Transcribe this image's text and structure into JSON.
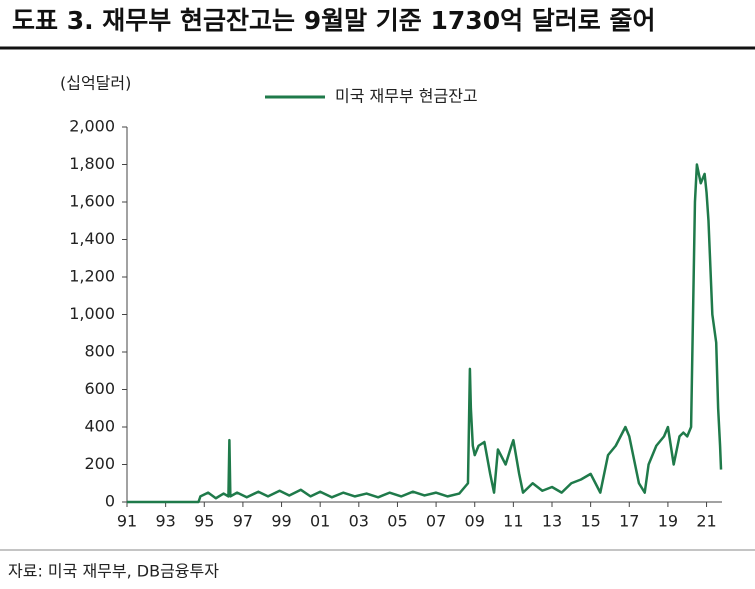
{
  "chart_data": {
    "type": "line",
    "title": "도표 3. 재무부 현금잔고는 9월말 기준 1730억 달러로 줄어",
    "y_label": "(십억달러)",
    "source": "자료: 미국 재무부, DB금융투자",
    "xlim": [
      1991,
      2021.8
    ],
    "xticks": [
      {
        "value": 1991,
        "label": "91"
      },
      {
        "value": 1993,
        "label": "93"
      },
      {
        "value": 1995,
        "label": "95"
      },
      {
        "value": 1997,
        "label": "97"
      },
      {
        "value": 1999,
        "label": "99"
      },
      {
        "value": 2001,
        "label": "01"
      },
      {
        "value": 2003,
        "label": "03"
      },
      {
        "value": 2005,
        "label": "05"
      },
      {
        "value": 2007,
        "label": "07"
      },
      {
        "value": 2009,
        "label": "09"
      },
      {
        "value": 2011,
        "label": "11"
      },
      {
        "value": 2013,
        "label": "13"
      },
      {
        "value": 2015,
        "label": "15"
      },
      {
        "value": 2017,
        "label": "17"
      },
      {
        "value": 2019,
        "label": "19"
      },
      {
        "value": 2021,
        "label": "21"
      }
    ],
    "ylim": [
      0,
      2000
    ],
    "yticks": [
      0,
      200,
      400,
      600,
      800,
      {
        "value": 1000,
        "label": "1,000"
      },
      {
        "value": 1200,
        "label": "1,200"
      },
      {
        "value": 1400,
        "label": "1,400"
      },
      {
        "value": 1600,
        "label": "1,600"
      },
      {
        "value": 1800,
        "label": "1,800"
      },
      {
        "value": 2000,
        "label": "2,000"
      }
    ],
    "x": [
      1991,
      1994.7,
      1994.8,
      1995.2,
      1995.6,
      1996.0,
      1996.25,
      1996.3,
      1996.35,
      1996.7,
      1997.2,
      1997.8,
      1998.3,
      1998.9,
      1999.4,
      2000.0,
      2000.5,
      2001.0,
      2001.6,
      2002.2,
      2002.8,
      2003.4,
      2004.0,
      2004.6,
      2005.2,
      2005.8,
      2006.4,
      2007.0,
      2007.6,
      2008.2,
      2008.65,
      2008.75,
      2008.8,
      2008.9,
      2009.0,
      2009.2,
      2009.5,
      2009.8,
      2010.0,
      2010.2,
      2010.6,
      2010.9,
      2011.0,
      2011.3,
      2011.5,
      2011.8,
      2012.0,
      2012.5,
      2013.0,
      2013.5,
      2014.0,
      2014.5,
      2015.0,
      2015.5,
      2015.9,
      2016.3,
      2016.8,
      2017.0,
      2017.5,
      2017.8,
      2018.0,
      2018.4,
      2018.8,
      2019.0,
      2019.3,
      2019.6,
      2019.8,
      2020.0,
      2020.2,
      2020.3,
      2020.4,
      2020.5,
      2020.7,
      2020.9,
      2021.0,
      2021.1,
      2021.3,
      2021.5,
      2021.6,
      2021.7,
      2021.75
    ],
    "series": [
      {
        "name": "미국 재무부 현금잔고",
        "color": "#1f7a4a",
        "values": [
          0,
          0,
          30,
          50,
          20,
          45,
          30,
          330,
          30,
          50,
          25,
          55,
          30,
          60,
          35,
          65,
          30,
          55,
          25,
          50,
          30,
          45,
          25,
          50,
          30,
          55,
          35,
          50,
          30,
          45,
          100,
          710,
          500,
          300,
          250,
          300,
          320,
          150,
          50,
          280,
          200,
          300,
          330,
          150,
          50,
          80,
          100,
          60,
          80,
          50,
          100,
          120,
          150,
          50,
          250,
          300,
          400,
          350,
          100,
          50,
          200,
          300,
          350,
          400,
          200,
          350,
          370,
          350,
          400,
          1000,
          1600,
          1800,
          1700,
          1750,
          1650,
          1500,
          1000,
          850,
          500,
          300,
          173
        ]
      }
    ],
    "legend": "top"
  }
}
